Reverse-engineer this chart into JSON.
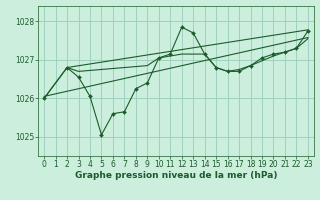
{
  "title": "Graphe pression niveau de la mer (hPa)",
  "bg_color": "#cceedd",
  "grid_color": "#99ccbb",
  "line_color": "#1a5c2a",
  "xlim": [
    -0.5,
    23.5
  ],
  "ylim": [
    1024.5,
    1028.4
  ],
  "yticks": [
    1025,
    1026,
    1027,
    1028
  ],
  "xticks": [
    0,
    1,
    2,
    3,
    4,
    5,
    6,
    7,
    8,
    9,
    10,
    11,
    12,
    13,
    14,
    15,
    16,
    17,
    18,
    19,
    20,
    21,
    22,
    23
  ],
  "main_series": {
    "x": [
      0,
      2,
      3,
      4,
      5,
      6,
      7,
      8,
      9,
      10,
      11,
      12,
      13,
      14,
      15,
      16,
      17,
      18,
      19,
      20,
      21,
      22,
      23
    ],
    "y": [
      1026.0,
      1026.8,
      1026.55,
      1026.05,
      1025.05,
      1025.6,
      1025.65,
      1026.25,
      1026.4,
      1027.05,
      1027.15,
      1027.85,
      1027.7,
      1027.15,
      1026.8,
      1026.7,
      1026.7,
      1026.85,
      1027.05,
      1027.15,
      1027.2,
      1027.3,
      1027.75
    ]
  },
  "smooth_line1": {
    "x": [
      0,
      2,
      3,
      9,
      10,
      11,
      12,
      14,
      15,
      16,
      17,
      18,
      20,
      21,
      22,
      23
    ],
    "y": [
      1026.0,
      1026.8,
      1026.7,
      1026.85,
      1027.05,
      1027.1,
      1027.15,
      1027.15,
      1026.8,
      1026.7,
      1026.75,
      1026.85,
      1027.1,
      1027.2,
      1027.3,
      1027.55
    ]
  },
  "trend_line1": {
    "x": [
      0,
      23
    ],
    "y": [
      1026.05,
      1027.58
    ]
  },
  "trend_line2": {
    "x": [
      2,
      23
    ],
    "y": [
      1026.8,
      1027.78
    ]
  },
  "tick_fontsize": 5.5,
  "label_fontsize": 6.5
}
